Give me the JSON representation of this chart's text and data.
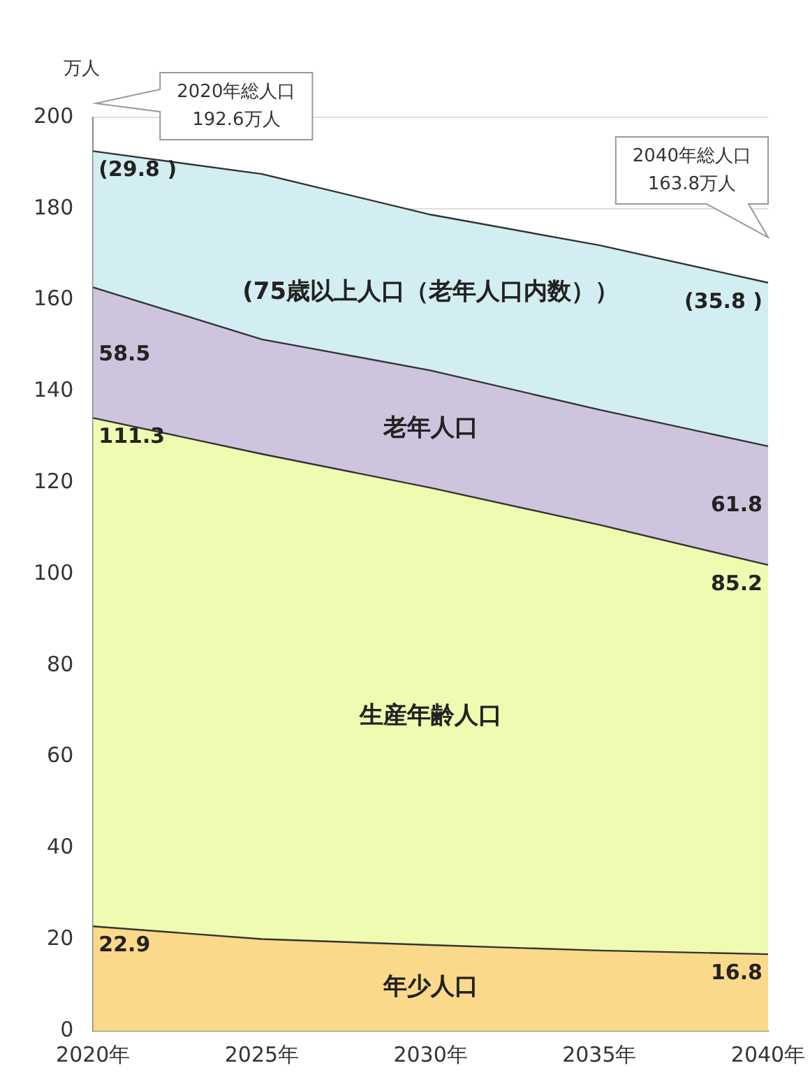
{
  "chart_data": {
    "type": "area",
    "stacked": true,
    "ylabel": "万人",
    "categories": [
      "2020年",
      "2025年",
      "2030年",
      "2035年",
      "2040年"
    ],
    "series": [
      {
        "name": "年少人口",
        "color": "#fad98a",
        "values": [
          22.9,
          20.1,
          18.8,
          17.6,
          16.8
        ],
        "value_labels": [
          "22.9",
          null,
          null,
          null,
          "16.8"
        ]
      },
      {
        "name": "生産年齢人口",
        "color": "#eefbb0",
        "values": [
          111.3,
          106.2,
          100.1,
          93.2,
          85.2
        ],
        "value_labels": [
          "111.3",
          null,
          null,
          null,
          "85.2"
        ]
      },
      {
        "name": "老年人口",
        "color": "#cfc4de",
        "values": [
          28.6,
          25.1,
          25.7,
          25.2,
          26.0
        ]
      },
      {
        "name": "(75歳以上人口（老年人口内数））",
        "color": "#d3eef2",
        "values": [
          29.8,
          36.2,
          34.1,
          36.0,
          35.8
        ],
        "value_labels": [
          "(29.8 )",
          null,
          null,
          null,
          "(35.8 )"
        ]
      }
    ],
    "ylim": [
      0,
      200
    ],
    "yticks": [
      0,
      20,
      40,
      60,
      80,
      100,
      120,
      140,
      160,
      180,
      200
    ],
    "grid": "y",
    "legend": false,
    "annotations": [
      "2020年総人口\n192.6万人",
      "2040年総人口\n163.8万人",
      {
        "text": "58.5",
        "x": "2020年",
        "y": 148
      },
      {
        "text": "61.8",
        "x": "2040年",
        "y": 115
      }
    ]
  }
}
